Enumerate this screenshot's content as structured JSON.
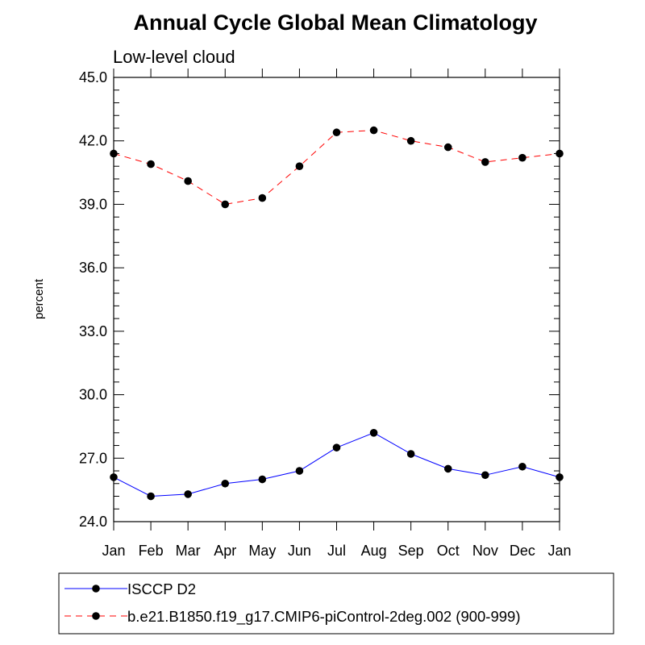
{
  "chart_data": {
    "type": "line",
    "title": "Annual Cycle Global Mean Climatology",
    "subtitle": "Low-level cloud",
    "ylabel": "percent",
    "xlabel": "",
    "categories": [
      "Jan",
      "Feb",
      "Mar",
      "Apr",
      "May",
      "Jun",
      "Jul",
      "Aug",
      "Sep",
      "Oct",
      "Nov",
      "Dec",
      "Jan"
    ],
    "ylim": [
      24.0,
      45.0
    ],
    "yticks": [
      "24.0",
      "27.0",
      "30.0",
      "33.0",
      "36.0",
      "39.0",
      "42.0",
      "45.0"
    ],
    "grid": false,
    "legend_position": "bottom",
    "series": [
      {
        "name": "ISCCP D2",
        "color": "#0000ff",
        "line_style": "solid",
        "marker": "filled-circle",
        "values": [
          26.1,
          25.2,
          25.3,
          25.8,
          26.0,
          26.4,
          27.5,
          28.2,
          27.2,
          26.5,
          26.2,
          26.6,
          26.1
        ]
      },
      {
        "name": "b.e21.B1850.f19_g17.CMIP6-piControl-2deg.002 (900-999)",
        "color": "#ff0000",
        "line_style": "dashed",
        "marker": "filled-circle",
        "values": [
          41.4,
          40.9,
          40.1,
          39.0,
          39.3,
          40.8,
          42.4,
          42.5,
          42.0,
          41.7,
          41.0,
          41.2,
          41.4
        ]
      }
    ]
  }
}
